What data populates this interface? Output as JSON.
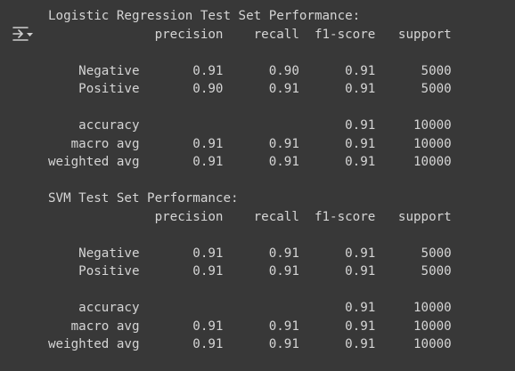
{
  "output": {
    "icon": "output-collapse-icon",
    "lines": [
      "Logistic Regression Test Set Performance:",
      "              precision    recall  f1-score   support",
      "",
      "    Negative       0.91      0.90      0.91      5000",
      "    Positive       0.90      0.91      0.91      5000",
      "",
      "    accuracy                           0.91     10000",
      "   macro avg       0.91      0.91      0.91     10000",
      "weighted avg       0.91      0.91      0.91     10000",
      "",
      "SVM Test Set Performance:",
      "              precision    recall  f1-score   support",
      "",
      "    Negative       0.91      0.91      0.91      5000",
      "    Positive       0.91      0.91      0.91      5000",
      "",
      "    accuracy                           0.91     10000",
      "   macro avg       0.91      0.91      0.91     10000",
      "weighted avg       0.91      0.91      0.91     10000"
    ]
  }
}
